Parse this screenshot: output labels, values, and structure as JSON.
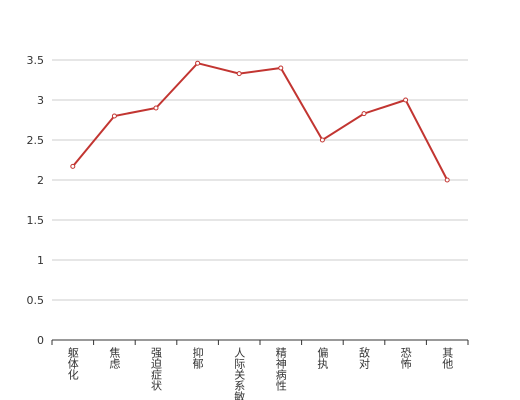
{
  "chart_data": {
    "type": "line",
    "categories": [
      "躯体化",
      "焦虑",
      "强迫症状",
      "抑郁",
      "人际关系敏感",
      "精神病性",
      "偏执",
      "敌对",
      "恐怖",
      "其他"
    ],
    "series": [
      {
        "color": "#c23531",
        "values": [
          2.17,
          2.8,
          2.9,
          3.46,
          3.33,
          3.4,
          2.5,
          2.83,
          3.0,
          2.0
        ]
      }
    ],
    "ylim": [
      0,
      3.5
    ],
    "yticks": [
      0,
      0.5,
      1,
      1.5,
      2,
      2.5,
      3,
      3.5
    ],
    "grid": true
  }
}
